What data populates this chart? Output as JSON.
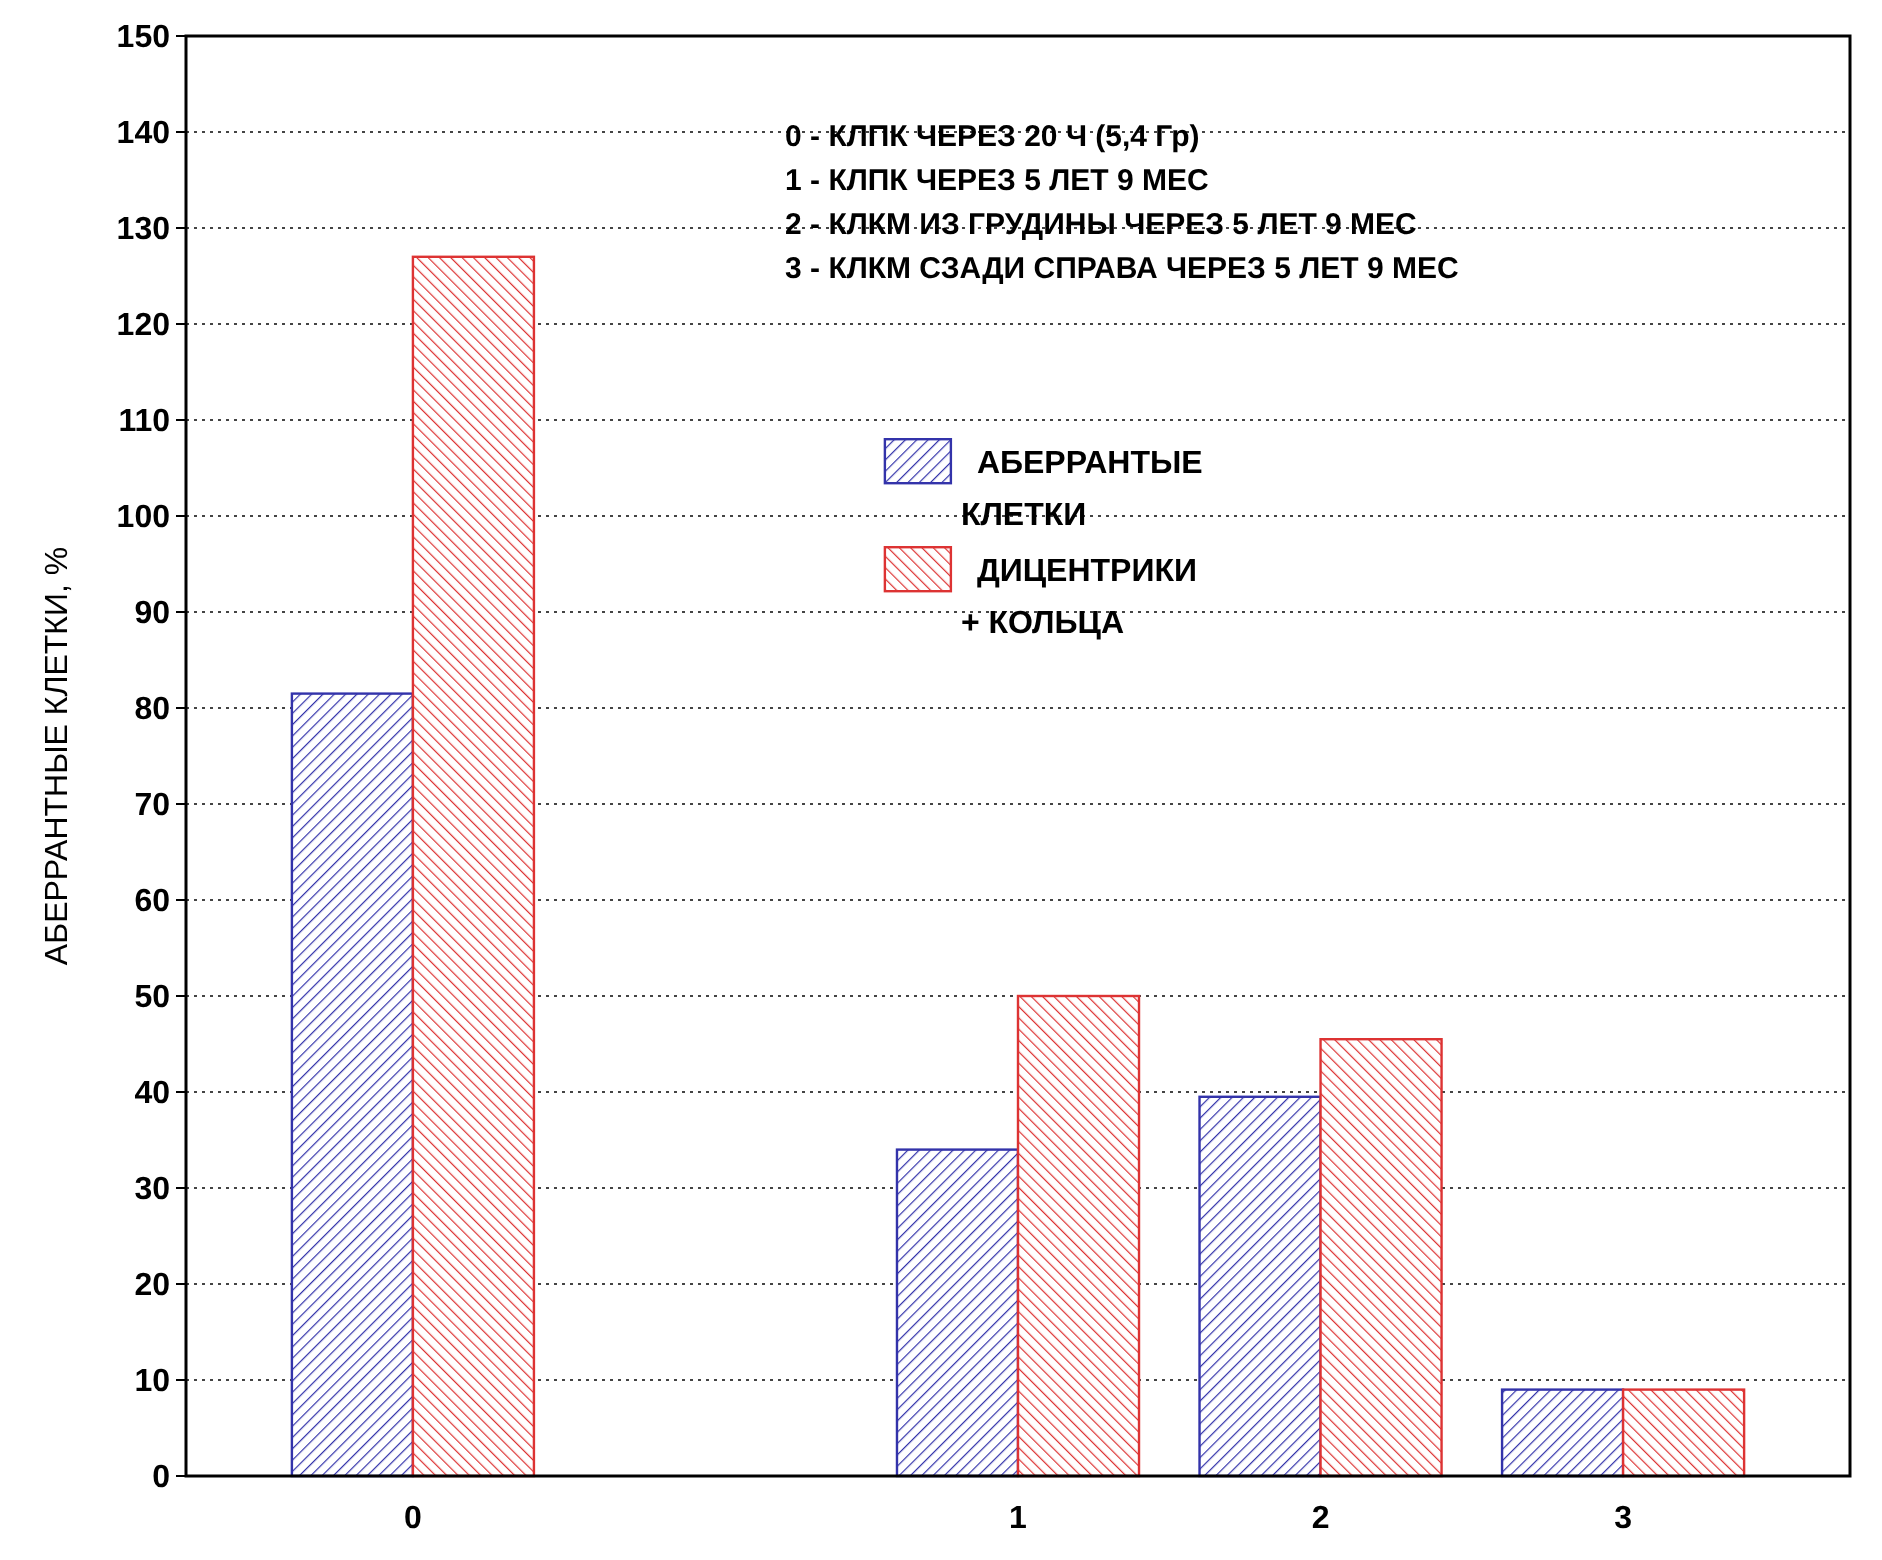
{
  "chart_data": {
    "type": "bar",
    "ylabel": "АБЕРРАНТНЫЕ КЛЕТКИ, %",
    "categories": [
      "0",
      null,
      "1",
      "2",
      "3"
    ],
    "series": [
      {
        "name": "АБЕРРАНТЫЕ КЛЕТКИ",
        "color": "#3333aa",
        "values": [
          81.5,
          null,
          34,
          39.5,
          9
        ]
      },
      {
        "name": "ДИЦЕНТРИКИ + КОЛЬЦА",
        "color": "#dd3333",
        "values": [
          127,
          null,
          50,
          45.5,
          9
        ]
      }
    ],
    "ylim": [
      0,
      150
    ],
    "yticks": [
      0,
      10,
      20,
      30,
      40,
      50,
      60,
      70,
      80,
      90,
      100,
      110,
      120,
      130,
      140,
      150
    ],
    "grid": "y",
    "legend": "top",
    "annotations": [
      "0 - КЛПК ЧЕРЕЗ 20 Ч (5,4 Гр)",
      "1 - КЛПК ЧЕРЕЗ 5 ЛЕТ 9 МЕС",
      "2 - КЛКМ ИЗ ГРУДИНЫ ЧЕРЕЗ 5 ЛЕТ 9 МЕС",
      "3 - КЛКМ СЗАДИ СПРАВА ЧЕРЕЗ 5 ЛЕТ 9 МЕС"
    ]
  }
}
